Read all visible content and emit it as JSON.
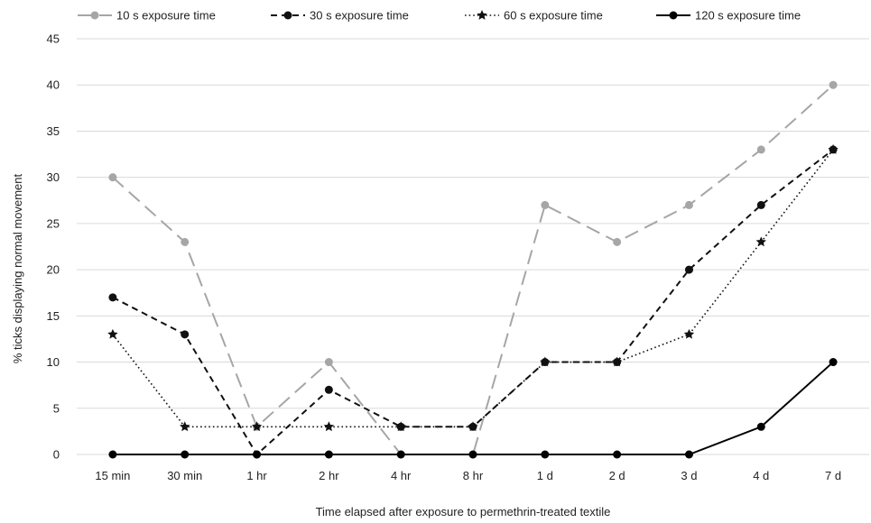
{
  "chart_data": {
    "type": "line",
    "xlabel": "Time elapsed after exposure to permethrin-treated textile",
    "ylabel": "% ticks displaying normal movement",
    "ylim": [
      0,
      45
    ],
    "yticks": [
      0,
      5,
      10,
      15,
      20,
      25,
      30,
      35,
      40,
      45
    ],
    "grid": true,
    "legend_position": "top",
    "categories": [
      "15 min",
      "30 min",
      "1 hr",
      "2 hr",
      "4 hr",
      "8 hr",
      "1 d",
      "2 d",
      "3 d",
      "4 d",
      "7 d"
    ],
    "series": [
      {
        "name": "10 s exposure time",
        "values": [
          30,
          23,
          3,
          10,
          0,
          0,
          27,
          23,
          27,
          33,
          40
        ],
        "color": "#a6a6a6",
        "dash": "long-dash",
        "marker": "circle"
      },
      {
        "name": "30 s exposure time",
        "values": [
          17,
          13,
          0,
          7,
          3,
          3,
          10,
          10,
          20,
          27,
          33
        ],
        "color": "#111111",
        "dash": "dash",
        "marker": "circle"
      },
      {
        "name": "60 s exposure time",
        "values": [
          13,
          3,
          3,
          3,
          3,
          3,
          10,
          10,
          13,
          23,
          33
        ],
        "color": "#111111",
        "dash": "dot",
        "marker": "star"
      },
      {
        "name": "120 s exposure time",
        "values": [
          0,
          0,
          0,
          0,
          0,
          0,
          0,
          0,
          0,
          3,
          10
        ],
        "color": "#000000",
        "dash": "solid",
        "marker": "circle"
      }
    ]
  }
}
